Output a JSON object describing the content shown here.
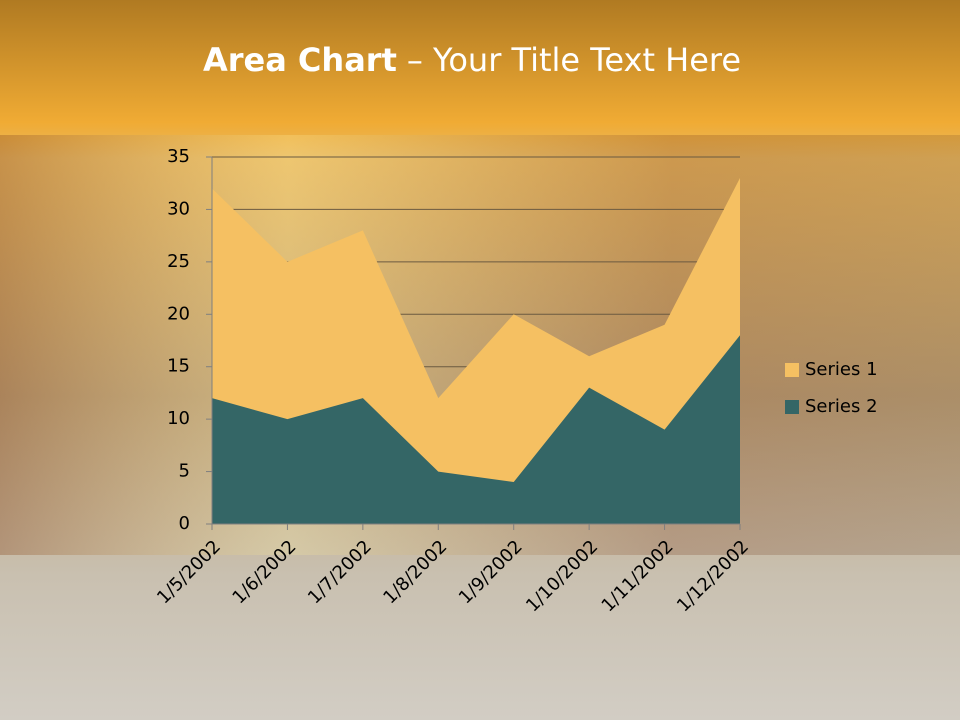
{
  "chart_data": {
    "type": "area",
    "title": {
      "bold": "Area Chart",
      "rest": "– Your Title Text Here"
    },
    "categories": [
      "1/5/2002",
      "1/6/2002",
      "1/7/2002",
      "1/8/2002",
      "1/9/2002",
      "1/10/2002",
      "1/11/2002",
      "1/12/2002"
    ],
    "series": [
      {
        "name": "Series 1",
        "color": "#f5c062",
        "values": [
          32,
          25,
          28,
          12,
          20,
          16,
          19,
          33
        ]
      },
      {
        "name": "Series 2",
        "color": "#346666",
        "values": [
          12,
          10,
          12,
          5,
          4,
          13,
          9,
          18
        ]
      }
    ],
    "ylim": [
      0,
      35
    ],
    "yticks": [
      0,
      5,
      10,
      15,
      20,
      25,
      30,
      35
    ],
    "grid": true,
    "legend": "right"
  }
}
